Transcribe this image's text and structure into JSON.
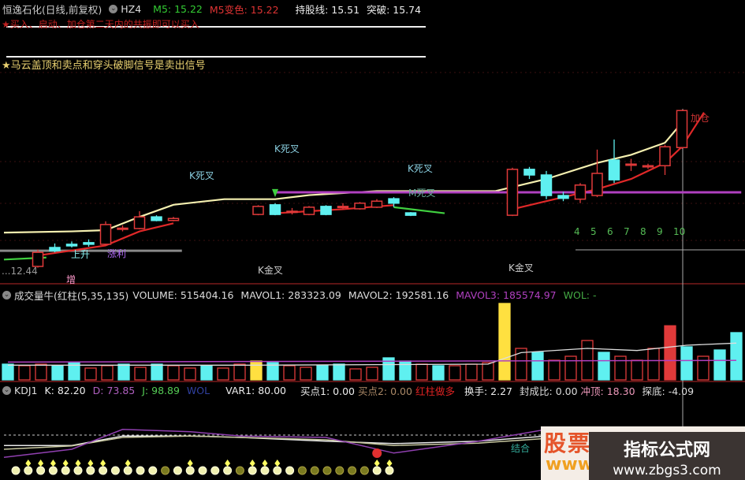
{
  "header": {
    "title": "恒逸石化(日线,前复权)",
    "indicator": "HZ4",
    "m5": "M5: 15.22",
    "m5_color": "M5变色: 15.22",
    "hold_line": "持股线: 15.51",
    "breakout": "突破: 15.74"
  },
  "notes": {
    "buy_note": "★买入、启动、加仓第二天内的共振即可以买入",
    "sell_note": "★马云盖顶和卖点和穿头破脚信号是卖出信号"
  },
  "labels": {
    "k_dead_1": "K死叉",
    "k_dead_2": "K死叉",
    "k_dead_3": "K死叉",
    "m_dead": "M死叉",
    "k_gold_1": "K金叉",
    "k_gold_2": "K金叉",
    "rise": "上升",
    "profit": "涨利",
    "low_value": "...12.44",
    "add": "增",
    "add_position": "加仓",
    "combine": "结合",
    "counts": [
      "4",
      "5",
      "6",
      "7",
      "8",
      "9",
      "10"
    ]
  },
  "volume_header": {
    "name": "成交量牛(红柱(5,35,135)",
    "volume": "VOLUME: 515404.16",
    "mavol1": "MAVOL1: 283323.09",
    "mavol2": "MAVOL2: 192581.16",
    "mavol3": "MAVOL3: 185574.97",
    "wol": "WOL: -"
  },
  "kdj_header": {
    "name": "KDJ1",
    "k": "K: 82.20",
    "d": "D: 73.85",
    "j": "J: 98.89",
    "wol": "WOL",
    "var1": "VAR1: 80.00",
    "buy1": "买点1: 0.00",
    "buy2": "买点2: 0.00",
    "red_long": "红柱做多",
    "turnover": "换手: 2.27",
    "seal_ratio": "封成比: 0.00",
    "top": "冲顶: 18.30",
    "bottom": "探底: -4.09"
  },
  "watermark": {
    "brand": "股票",
    "www": "www",
    "site_name": "指标公式网",
    "site_url": "www.zbgs3.com"
  },
  "colors": {
    "up": "#e03a3a",
    "down": "#5ff0f0",
    "ma_yellow": "#f5f0b0",
    "ma_red": "#e02828",
    "purple": "#b040c0",
    "green": "#40d040",
    "separator": "#7a1a1a"
  },
  "chart_data": [
    {
      "type": "candlestick",
      "ylim": [
        12.0,
        16.5
      ],
      "candles": [
        {
          "i": 2,
          "o": 12.43,
          "c": 12.78,
          "h": 12.85,
          "l": 12.4
        },
        {
          "i": 3,
          "o": 12.9,
          "c": 12.82,
          "h": 13.0,
          "l": 12.78
        },
        {
          "i": 4,
          "o": 12.98,
          "c": 12.94,
          "h": 13.05,
          "l": 12.9
        },
        {
          "i": 5,
          "o": 13.02,
          "c": 12.98,
          "h": 13.1,
          "l": 12.92
        },
        {
          "i": 6,
          "o": 12.98,
          "c": 13.47,
          "h": 13.55,
          "l": 12.95
        },
        {
          "i": 7,
          "o": 13.37,
          "c": 13.38,
          "h": 13.45,
          "l": 13.3
        },
        {
          "i": 8,
          "o": 13.37,
          "c": 13.66,
          "h": 13.8,
          "l": 13.35
        },
        {
          "i": 9,
          "o": 13.66,
          "c": 13.57,
          "h": 13.7,
          "l": 13.55
        },
        {
          "i": 10,
          "o": 13.57,
          "c": 13.62,
          "h": 13.66,
          "l": 13.55
        },
        {
          "i": 15,
          "o": 13.72,
          "c": 13.92,
          "h": 13.95,
          "l": 13.7
        },
        {
          "i": 16,
          "o": 13.96,
          "c": 13.72,
          "h": 14.0,
          "l": 13.7
        },
        {
          "i": 17,
          "o": 13.8,
          "c": 13.8,
          "h": 13.88,
          "l": 13.72
        },
        {
          "i": 18,
          "o": 13.72,
          "c": 13.9,
          "h": 13.93,
          "l": 13.7
        },
        {
          "i": 19,
          "o": 13.92,
          "c": 13.72,
          "h": 13.95,
          "l": 13.7
        },
        {
          "i": 20,
          "o": 13.92,
          "c": 13.92,
          "h": 14.0,
          "l": 13.85
        },
        {
          "i": 21,
          "o": 13.86,
          "c": 14.0,
          "h": 14.03,
          "l": 13.84
        },
        {
          "i": 22,
          "o": 13.9,
          "c": 14.05,
          "h": 14.1,
          "l": 13.88
        },
        {
          "i": 23,
          "o": 14.11,
          "c": 14.0,
          "h": 14.15,
          "l": 13.9
        },
        {
          "i": 24,
          "o": 13.76,
          "c": 13.7,
          "h": 13.78,
          "l": 13.68
        },
        {
          "i": 30,
          "o": 13.7,
          "c": 14.84,
          "h": 14.88,
          "l": 13.68
        },
        {
          "i": 31,
          "o": 14.84,
          "c": 14.7,
          "h": 14.9,
          "l": 14.6
        },
        {
          "i": 32,
          "o": 14.7,
          "c": 14.19,
          "h": 14.8,
          "l": 14.1
        },
        {
          "i": 33,
          "o": 14.19,
          "c": 14.12,
          "h": 14.28,
          "l": 14.05
        },
        {
          "i": 34,
          "o": 14.1,
          "c": 14.45,
          "h": 14.5,
          "l": 14.0
        },
        {
          "i": 35,
          "o": 14.19,
          "c": 14.74,
          "h": 15.33,
          "l": 14.15
        },
        {
          "i": 36,
          "o": 15.07,
          "c": 14.58,
          "h": 15.58,
          "l": 14.5
        },
        {
          "i": 37,
          "o": 14.97,
          "c": 14.97,
          "h": 15.1,
          "l": 14.8
        },
        {
          "i": 38,
          "o": 14.9,
          "c": 14.93,
          "h": 14.98,
          "l": 14.85
        },
        {
          "i": 39,
          "o": 14.93,
          "c": 15.4,
          "h": 15.45,
          "l": 14.7
        },
        {
          "i": 40,
          "o": 15.38,
          "c": 16.3,
          "h": 16.3,
          "l": 15.35
        }
      ],
      "lines": [
        {
          "color": "ma_yellow",
          "points": [
            [
              0,
              13.27
            ],
            [
              4,
              13.3
            ],
            [
              6,
              13.33
            ],
            [
              8,
              13.66
            ],
            [
              10,
              13.96
            ],
            [
              13,
              14.1
            ],
            [
              16,
              14.1
            ],
            [
              18,
              14.2
            ],
            [
              22,
              14.3
            ],
            [
              29,
              14.3
            ],
            [
              32,
              14.6
            ],
            [
              35,
              15.0
            ],
            [
              37,
              15.2
            ],
            [
              39,
              15.5
            ],
            [
              40,
              16.0
            ]
          ]
        },
        {
          "color": "ma_red",
          "points": [
            [
              2,
              12.7
            ],
            [
              6,
              12.95
            ],
            [
              8,
              13.3
            ],
            [
              10,
              13.5
            ]
          ]
        },
        {
          "color": "ma_red",
          "points": [
            [
              16,
              13.75
            ],
            [
              20,
              13.85
            ],
            [
              23,
              13.95
            ]
          ]
        },
        {
          "color": "ma_red",
          "points": [
            [
              30,
              13.85
            ],
            [
              32,
              14.05
            ],
            [
              35,
              14.35
            ],
            [
              37,
              14.6
            ],
            [
              39,
              15.0
            ],
            [
              40,
              15.4
            ],
            [
              41.3,
              16.25
            ]
          ]
        },
        {
          "color": "green",
          "points": [
            [
              0,
              12.6
            ],
            [
              2.5,
              12.65
            ]
          ]
        },
        {
          "color": "green",
          "points": [
            [
              23,
              13.9
            ],
            [
              26,
              13.75
            ]
          ]
        },
        {
          "color": "purple",
          "points": [
            [
              16,
              14.27
            ],
            [
              43.5,
              14.27
            ]
          ]
        }
      ]
    },
    {
      "type": "bar",
      "ylim": [
        0,
        750000
      ],
      "bars": [
        [
          "down",
          150000
        ],
        [
          "up",
          135000
        ],
        [
          "up",
          150000
        ],
        [
          "down",
          135000
        ],
        [
          "down",
          165000
        ],
        [
          "up",
          112500
        ],
        [
          "up",
          135000
        ],
        [
          "down",
          150000
        ],
        [
          "up",
          120000
        ],
        [
          "down",
          150000
        ],
        [
          "up",
          135000
        ],
        [
          "up",
          112500
        ],
        [
          "down",
          135000
        ],
        [
          "up",
          112500
        ],
        [
          "up",
          150000
        ],
        [
          "yellow",
          180000
        ],
        [
          "down",
          165000
        ],
        [
          "up",
          135000
        ],
        [
          "up",
          120000
        ],
        [
          "down",
          135000
        ],
        [
          "down",
          150000
        ],
        [
          "up",
          105000
        ],
        [
          "up",
          120000
        ],
        [
          "down",
          210000
        ],
        [
          "down",
          180000
        ],
        [
          "up",
          150000
        ],
        [
          "down",
          135000
        ],
        [
          "up",
          135000
        ],
        [
          "up",
          150000
        ],
        [
          "up",
          165000
        ],
        [
          "yellow",
          727500
        ],
        [
          "up",
          300000
        ],
        [
          "down",
          262500
        ],
        [
          "up",
          187500
        ],
        [
          "up",
          225000
        ],
        [
          "up",
          375000
        ],
        [
          "down",
          262500
        ],
        [
          "up",
          225000
        ],
        [
          "up",
          187500
        ],
        [
          "up",
          300000
        ],
        [
          "upfilled",
          515404.16
        ],
        [
          "down",
          315000
        ],
        [
          "up",
          225000
        ],
        [
          "down",
          285000
        ],
        [
          "down",
          450000
        ]
      ],
      "mavol1": [
        [
          0,
          140000
        ],
        [
          15,
          140000
        ],
        [
          29,
          150000
        ],
        [
          31,
          260000
        ],
        [
          35,
          300000
        ],
        [
          38,
          280000
        ],
        [
          41,
          330000
        ],
        [
          44,
          350000
        ]
      ],
      "mavol3": [
        [
          0,
          170000
        ],
        [
          44,
          185574.97
        ]
      ]
    },
    {
      "type": "line",
      "ylim": [
        0,
        100
      ],
      "reference_level": 80,
      "x": [
        0,
        4,
        7,
        11,
        14,
        19,
        23,
        28,
        32,
        35,
        37,
        40,
        43
      ],
      "series": [
        {
          "name": "K",
          "color": "#e8e8e8",
          "values": [
            58,
            58,
            78,
            78,
            75,
            67,
            62,
            67,
            78,
            50,
            47,
            75,
            75
          ]
        },
        {
          "name": "D",
          "color": "#c8c8a0",
          "values": [
            50,
            57,
            75,
            78,
            75,
            70,
            58,
            63,
            73,
            58,
            50,
            67,
            70
          ]
        },
        {
          "name": "J",
          "color": "#9040b0",
          "values": [
            33,
            50,
            92,
            87,
            78,
            75,
            42,
            67,
            92,
            28,
            33,
            87,
            67
          ]
        }
      ],
      "signals": [
        "b",
        "bd",
        "bd",
        "bd",
        "bd",
        "bd",
        "bd",
        "bd",
        "b",
        "bd",
        "b",
        "b",
        "o",
        "b",
        "bd",
        "b",
        "b",
        "bd",
        "o",
        "bd",
        "bd",
        "bd",
        "b",
        "o",
        "o",
        "o",
        "o",
        "o",
        "o",
        "bd",
        "bd"
      ]
    }
  ]
}
